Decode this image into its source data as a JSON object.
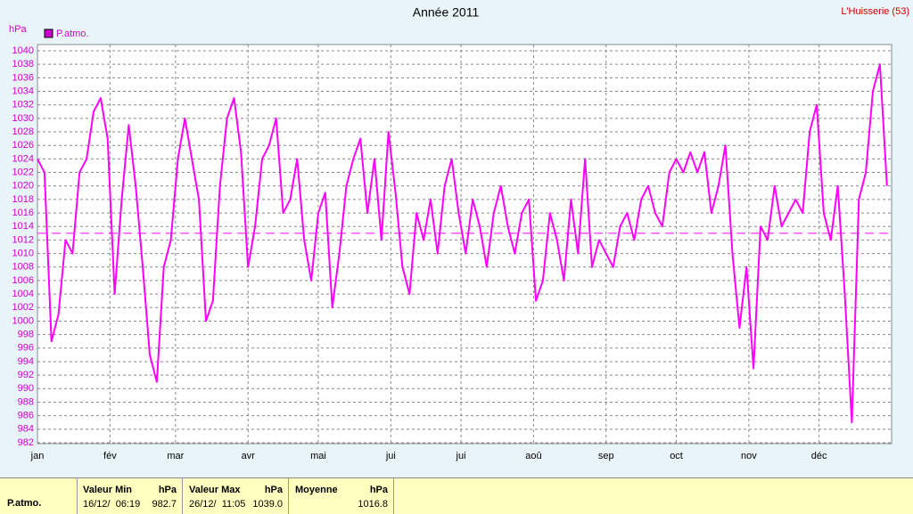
{
  "chart_data": {
    "type": "line",
    "title": "Année 2011",
    "subtitle": "L'Huisserie (53)",
    "y_label": "hPa",
    "xlim": [
      0,
      365
    ],
    "xticks": [
      {
        "value": 0,
        "label": "jan"
      },
      {
        "value": 31,
        "label": "fév"
      },
      {
        "value": 59,
        "label": "mar"
      },
      {
        "value": 90,
        "label": "avr"
      },
      {
        "value": 120,
        "label": "mai"
      },
      {
        "value": 151,
        "label": "jui"
      },
      {
        "value": 181,
        "label": "jui"
      },
      {
        "value": 212,
        "label": "aoû"
      },
      {
        "value": 243,
        "label": "sep"
      },
      {
        "value": 273,
        "label": "oct"
      },
      {
        "value": 304,
        "label": "nov"
      },
      {
        "value": 334,
        "label": "déc"
      }
    ],
    "ylim": [
      982,
      1040
    ],
    "yticks": [
      982,
      984,
      986,
      988,
      990,
      992,
      994,
      996,
      998,
      1000,
      1002,
      1004,
      1006,
      1008,
      1010,
      1012,
      1014,
      1016,
      1018,
      1020,
      1022,
      1024,
      1026,
      1028,
      1030,
      1032,
      1034,
      1036,
      1038,
      1040
    ],
    "grid": true,
    "reference_line": 1013,
    "x": [
      0,
      3,
      6,
      9,
      12,
      15,
      18,
      21,
      24,
      27,
      30,
      33,
      36,
      39,
      42,
      45,
      48,
      51,
      54,
      57,
      60,
      63,
      66,
      69,
      72,
      75,
      78,
      81,
      84,
      87,
      90,
      93,
      96,
      99,
      102,
      105,
      108,
      111,
      114,
      117,
      120,
      123,
      126,
      129,
      132,
      135,
      138,
      141,
      144,
      147,
      150,
      153,
      156,
      159,
      162,
      165,
      168,
      171,
      174,
      177,
      180,
      183,
      186,
      189,
      192,
      195,
      198,
      201,
      204,
      207,
      210,
      213,
      216,
      219,
      222,
      225,
      228,
      231,
      234,
      237,
      240,
      243,
      246,
      249,
      252,
      255,
      258,
      261,
      264,
      267,
      270,
      273,
      276,
      279,
      282,
      285,
      288,
      291,
      294,
      297,
      300,
      303,
      306,
      309,
      312,
      315,
      318,
      321,
      324,
      327,
      330,
      333,
      336,
      339,
      342,
      345,
      348,
      351,
      354,
      357,
      360,
      363
    ],
    "series": [
      {
        "name": "P.atmo.",
        "color": "#ff00ff",
        "values": [
          1024,
          1022,
          997,
          1001,
          1012,
          1010,
          1022,
          1024,
          1031,
          1033,
          1027,
          1004,
          1018,
          1029,
          1020,
          1008,
          995,
          991,
          1008,
          1012,
          1024,
          1030,
          1024,
          1018,
          1000,
          1003,
          1020,
          1030,
          1033,
          1025,
          1008,
          1014,
          1024,
          1026,
          1030,
          1016,
          1018,
          1024,
          1012,
          1006,
          1016,
          1019,
          1002,
          1010,
          1020,
          1024,
          1027,
          1016,
          1024,
          1012,
          1028,
          1019,
          1008,
          1004,
          1016,
          1012,
          1018,
          1010,
          1020,
          1024,
          1016,
          1010,
          1018,
          1014,
          1008,
          1016,
          1020,
          1014,
          1010,
          1016,
          1018,
          1003,
          1006,
          1016,
          1012,
          1006,
          1018,
          1010,
          1024,
          1008,
          1012,
          1010,
          1008,
          1014,
          1016,
          1012,
          1018,
          1020,
          1016,
          1014,
          1022,
          1024,
          1022,
          1025,
          1022,
          1025,
          1016,
          1020,
          1026,
          1010,
          999,
          1008,
          993,
          1014,
          1012,
          1020,
          1014,
          1016,
          1018,
          1016,
          1028,
          1032,
          1016,
          1012,
          1020,
          1004,
          985,
          1018,
          1022,
          1034,
          1038,
          1020
        ]
      }
    ]
  },
  "stats": {
    "row_label": "P.atmo.",
    "min": {
      "header": "Valeur Min",
      "unit": "hPa",
      "date": "16/12/  06:19",
      "value": "982.7"
    },
    "max": {
      "header": "Valeur Max",
      "unit": "hPa",
      "date": "26/12/  11:05",
      "value": "1039.0"
    },
    "mean": {
      "header": "Moyenne",
      "unit": "hPa",
      "value": "1016.8"
    }
  }
}
